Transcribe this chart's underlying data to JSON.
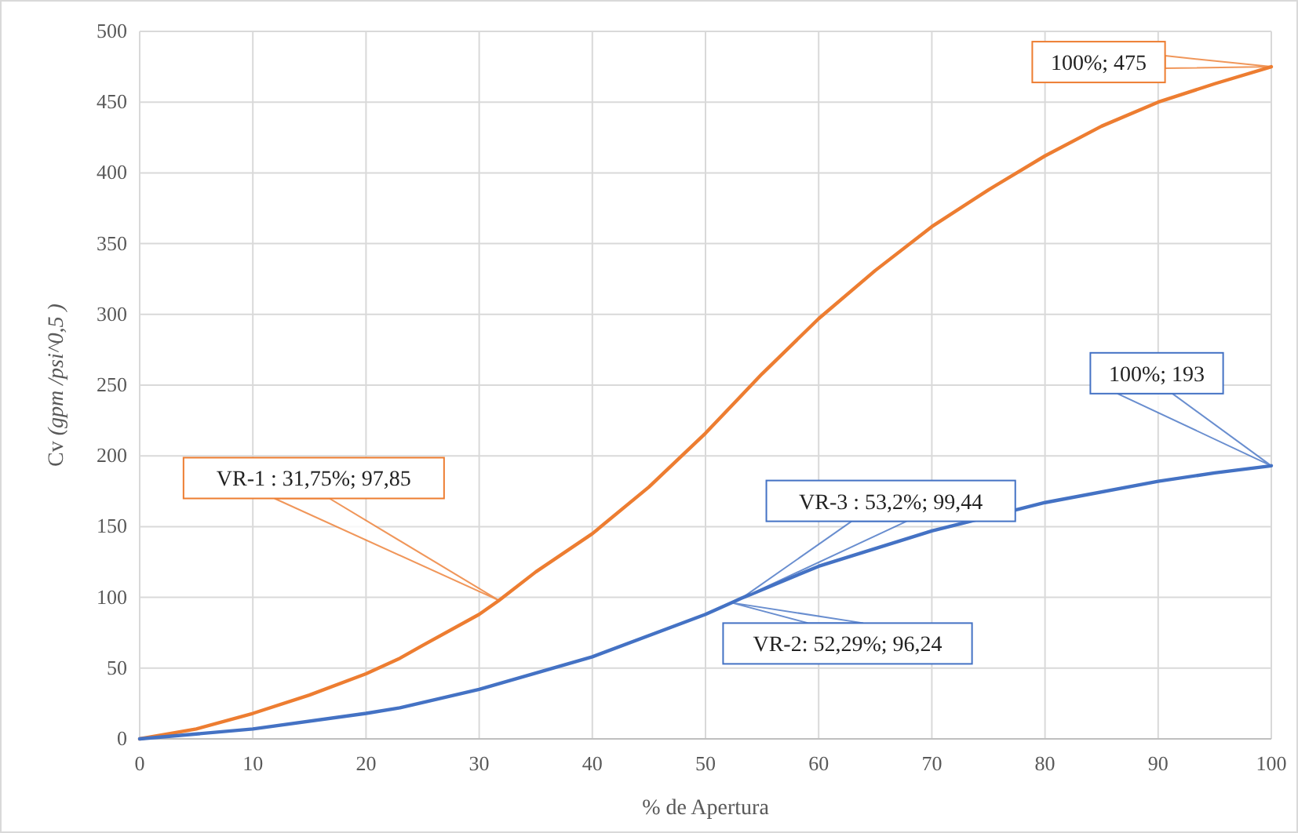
{
  "chart_data": {
    "type": "line",
    "xlabel": "% de Apertura",
    "ylabel": "Cv (gpm /psi^0,5 )",
    "xlim": [
      0,
      100
    ],
    "ylim": [
      0,
      500
    ],
    "xticks": [
      0,
      10,
      20,
      30,
      40,
      50,
      60,
      70,
      80,
      90,
      100
    ],
    "yticks": [
      0,
      50,
      100,
      150,
      200,
      250,
      300,
      350,
      400,
      450,
      500
    ],
    "grid": true,
    "marker": "none",
    "line_style": "solid",
    "series": [
      {
        "color": "#ed7d31",
        "x": [
          0,
          5,
          10,
          15,
          20,
          23,
          25,
          30,
          31.75,
          35,
          40,
          45,
          50,
          55,
          60,
          65,
          70,
          75,
          80,
          85,
          90,
          95,
          100
        ],
        "values": [
          0,
          7,
          18,
          31,
          46,
          57,
          66,
          88,
          97.85,
          118,
          145,
          178,
          216,
          258,
          297,
          331,
          362,
          388,
          412,
          433,
          450,
          463,
          475
        ]
      },
      {
        "color": "#4472c4",
        "x": [
          0,
          10,
          20,
          23,
          30,
          40,
          50,
          52.29,
          53.2,
          60,
          70,
          80,
          90,
          95,
          100
        ],
        "values": [
          0,
          7,
          18,
          22,
          35,
          58,
          88,
          96.24,
          99.44,
          122,
          147,
          167,
          182,
          188,
          193
        ]
      }
    ],
    "annotations": [
      {
        "text": "VR-1 : 31,75%; 97,85",
        "x": 31.75,
        "y": 97.85
      },
      {
        "text": "VR-3 : 53,2%; 99,44",
        "x": 53.2,
        "y": 99.44
      },
      {
        "text": "VR-2: 52,29%; 96,24",
        "x": 52.29,
        "y": 96.24
      },
      {
        "text": "100%; 193",
        "x": 100,
        "y": 193
      },
      {
        "text": "100%; 475",
        "x": 100,
        "y": 475
      }
    ]
  }
}
